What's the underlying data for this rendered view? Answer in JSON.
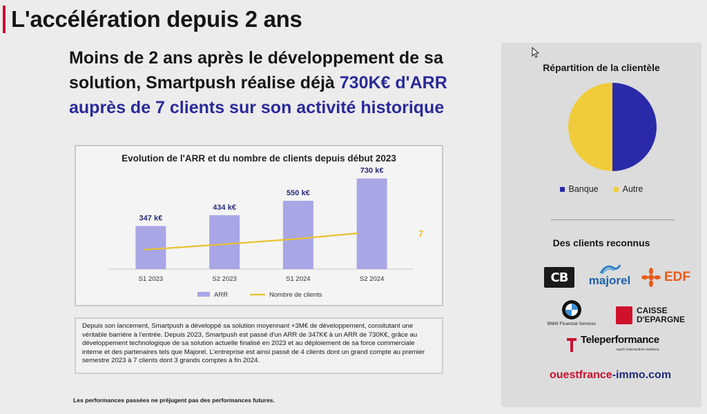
{
  "page": {
    "title": "L'accélération depuis 2 ans",
    "headline_part1": "Moins de 2 ans après le développement de sa solution, Smartpush réalise déjà ",
    "headline_accent": "730K€ d'ARR auprès de 7 clients sur son activité historique"
  },
  "chart_data": {
    "type": "bar",
    "title": "Evolution de l'ARR et du nombre de clients depuis début 2023",
    "categories": [
      "S1 2023",
      "S2 2023",
      "S1 2024",
      "S2 2024"
    ],
    "series": [
      {
        "name": "ARR",
        "values": [
          347,
          434,
          550,
          730
        ],
        "labels": [
          "347 k€",
          "434 k€",
          "550 k€",
          "730 k€"
        ],
        "color": "#a9a6e6"
      },
      {
        "name": "Nombre de clients",
        "type": "line",
        "values": [
          4,
          5,
          6,
          7
        ],
        "end_label": "7",
        "color": "#e8c12e"
      }
    ],
    "ylim": [
      0,
      800
    ],
    "grid": false,
    "legend_position": "bottom"
  },
  "description": "Depuis son lancement, Smartpush a développé sa solution moyennant +3M€ de développement, consitutant une véritable barrière à l'entrée. Depuis 2023, Smartpush est passé d'un ARR de 347K€ à un ARR de 730K€, grâce au développement technologique de sa solution actuelle finalisé en 2023 et au déploiement de sa force commerciale interne et des partenaires tels que Majorel. L'entreprise est ainsi passé de 4 clients dont un grand compte au premier semestre 2023 à 7 clients dont 3 grands comptes à fin 2024.",
  "disclaimer": "Les performances passées ne préjugent pas des performances futures.",
  "clientele": {
    "title": "Répartition de la clientèle",
    "pie": [
      {
        "label": "Banque",
        "value": 50,
        "color": "#2a2aa8"
      },
      {
        "label": "Autre",
        "value": 50,
        "color": "#f0cc3a"
      }
    ]
  },
  "clients": {
    "title": "Des clients reconnus",
    "logos": {
      "cb": "CB",
      "majorel": "majorel",
      "edf": "EDF",
      "bmw_caption": "BMW Financial Services",
      "caisse_line1": "CAISSE",
      "caisse_line2": "D'EPARGNE",
      "teleperformance": "Teleperformance",
      "teleperformance_tagline": "each interaction matters",
      "ouestfrance_part1": "ouestfrance",
      "ouestfrance_part2": "-immo.com"
    }
  },
  "colors": {
    "accent_red": "#c8102e",
    "accent_blue": "#2a2a9a",
    "bar": "#a9a6e6",
    "line": "#e8c12e"
  }
}
